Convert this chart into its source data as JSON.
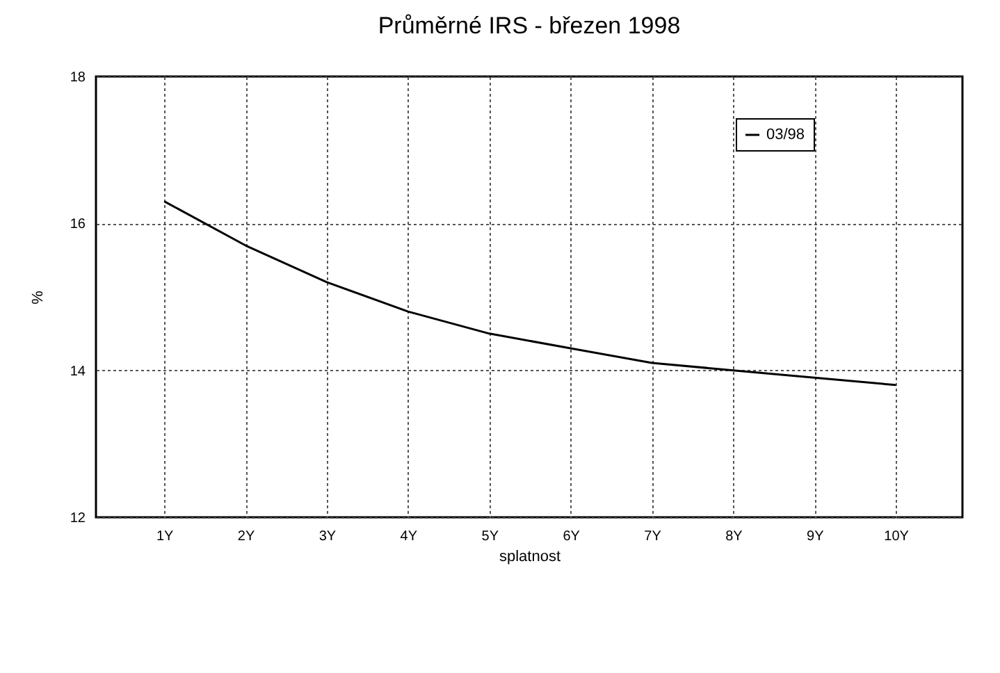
{
  "chart_data": {
    "type": "line",
    "title": "Průměrné IRS - březen 1998",
    "xlabel": "splatnost",
    "ylabel": "%",
    "categories": [
      "1Y",
      "2Y",
      "3Y",
      "4Y",
      "5Y",
      "6Y",
      "7Y",
      "8Y",
      "9Y",
      "10Y"
    ],
    "series": [
      {
        "name": "03/98",
        "color": "#000000",
        "values": [
          16.3,
          15.7,
          15.2,
          14.8,
          14.5,
          14.3,
          14.1,
          14.0,
          13.9,
          13.8
        ]
      }
    ],
    "ylim": [
      12,
      18
    ],
    "yticks": [
      12,
      14,
      16,
      18
    ],
    "grid": true,
    "legend": "top right",
    "line_style": "solid",
    "marker": "none"
  }
}
